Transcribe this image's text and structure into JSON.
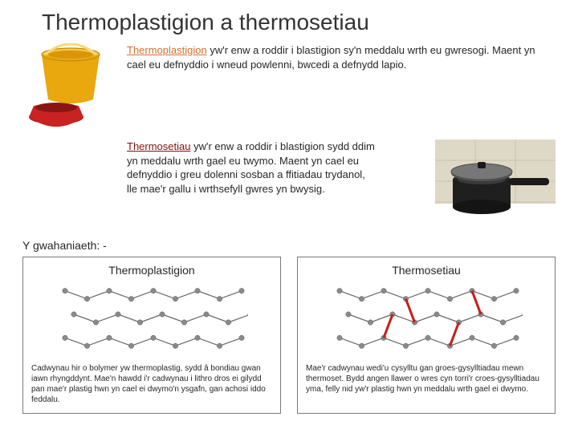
{
  "title": "Thermoplastigion a thermosetiau",
  "section1": {
    "term": "Thermoplastigion",
    "body": " yw'r enw a roddir i blastigion sy'n meddalu wrth eu gwresogi. Maent yn cael eu defnyddio i wneud powlenni, bwcedi a defnydd lapio."
  },
  "section2": {
    "term": "Thermosetiau",
    "body": " yw'r enw a roddir i blastigion sydd ddim yn meddalu wrth gael eu twymo. Maent yn cael eu defnyddio i greu dolenni sosban a ffitiadau trydanol, lle mae'r gallu i wrthsefyll gwres yn bwysig."
  },
  "diff_heading": "Y gwahaniaeth: -",
  "panel1": {
    "title": "Thermoplastigion",
    "caption": "Cadwynau hir o bolymer yw thermoplastig, sydd â bondiau gwan iawn rhyngddynt. Mae'n hawdd i'r cadwynau i lithro dros ei gilydd pan mae'r plastig hwn yn cael ei dwymo'n ysgafn, gan achosi iddo feddalu."
  },
  "panel2": {
    "title": "Thermosetiau",
    "caption": "Mae'r cadwynau wedi'u cysylltu gan groes-gysylltiadau mewn thermoset. Bydd angen llawer o wres cyn torri'r croes-gysylltiadau yma, felly nid yw'r plastig hwn yn meddalu wrth gael ei dwymo."
  },
  "chain": {
    "node_fill": "#8a8a8a",
    "node_stroke": "#5a5a5a",
    "bond_color": "#6a6a6a",
    "cross_color": "#c71d1d",
    "node_r": 3.2,
    "chains_per_panel": 3,
    "nodes_per_chain": 9
  }
}
